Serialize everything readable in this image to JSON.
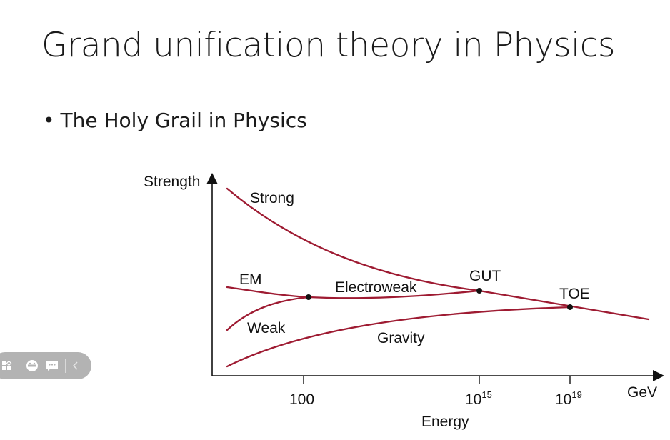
{
  "slide": {
    "title": "Grand unification theory in Physics",
    "bullet": "The Holy Grail in Physics"
  },
  "chart_data": {
    "type": "line",
    "xlabel": "Energy",
    "x_unit": "GeV",
    "ylabel": "Strength",
    "x_ticks": [
      {
        "label": "100"
      },
      {
        "label": "10",
        "exponent": "15"
      },
      {
        "label": "10",
        "exponent": "19"
      }
    ],
    "series": [
      {
        "name": "Strong"
      },
      {
        "name": "EM"
      },
      {
        "name": "Weak"
      },
      {
        "name": "Electroweak"
      },
      {
        "name": "Gravity"
      }
    ],
    "points": [
      "GUT",
      "TOE"
    ],
    "line_color": "#9e1b32",
    "grid": false
  },
  "toolbar": {
    "icons": [
      "slides-icon",
      "emoji-icon",
      "comment-icon",
      "chevron-left-icon"
    ]
  }
}
